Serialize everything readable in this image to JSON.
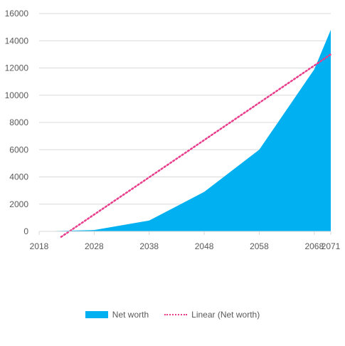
{
  "chart_data": {
    "type": "area",
    "x": [
      "2018",
      "2028",
      "2038",
      "2048",
      "2058",
      "2068",
      "2071"
    ],
    "ylim": [
      0,
      16000
    ],
    "yticks": [
      "0",
      "2000",
      "4000",
      "6000",
      "8000",
      "10000",
      "12000",
      "14000",
      "16000"
    ],
    "grid": true,
    "legend_position": "bottom",
    "series": [
      {
        "name": "Net worth",
        "type": "area",
        "color": "#00b0f0",
        "values": [
          0,
          100,
          800,
          2900,
          6000,
          11900,
          14800
        ]
      },
      {
        "name": "Linear (Net worth)",
        "type": "trendline",
        "color": "#e83e8c",
        "values_at_start_end": [
          -1500,
          13000
        ]
      }
    ]
  }
}
